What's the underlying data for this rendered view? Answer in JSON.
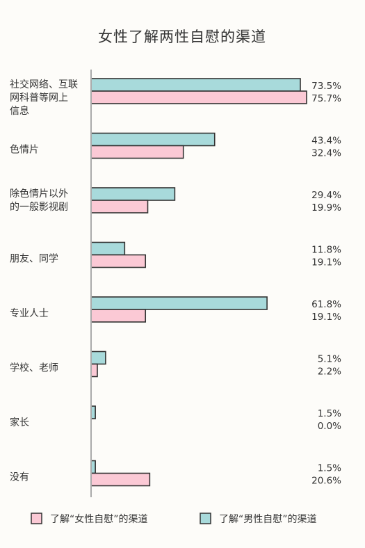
{
  "chart_data": {
    "type": "bar",
    "orientation": "horizontal",
    "title": "女性了解两性自慰的渠道",
    "categories": [
      [
        "社交网络、互联",
        "网科普等网上",
        "信息"
      ],
      [
        "色情片"
      ],
      [
        "除色情片以外",
        "的一般影视剧"
      ],
      [
        "朋友、同学"
      ],
      [
        "专业人士"
      ],
      [
        "学校、老师"
      ],
      [
        "家长"
      ],
      [
        "没有"
      ]
    ],
    "series": [
      {
        "name": "了解“男性自慰”的渠道",
        "color": "#a8dadb",
        "values": [
          73.5,
          43.4,
          29.4,
          11.8,
          61.8,
          5.1,
          1.5,
          1.5
        ],
        "labels": [
          "73.5%",
          "43.4%",
          "29.4%",
          "11.8%",
          "61.8%",
          "5.1%",
          "1.5%",
          "1.5%"
        ]
      },
      {
        "name": "了解“女性自慰”的渠道",
        "color": "#fbc9d5",
        "values": [
          75.7,
          32.4,
          19.9,
          19.1,
          19.1,
          2.2,
          0.0,
          20.6
        ],
        "labels": [
          "75.7%",
          "32.4%",
          "19.9%",
          "19.1%",
          "19.1%",
          "2.2%",
          "0.0%",
          "20.6%"
        ]
      }
    ],
    "xlim": [
      0,
      100
    ],
    "grid": false,
    "legend": [
      {
        "name": "了解“女性自慰”的渠道",
        "color": "#fbc9d5"
      },
      {
        "name": "了解“男性自慰”的渠道",
        "color": "#a8dadb"
      }
    ],
    "legend_position": "bottom"
  }
}
